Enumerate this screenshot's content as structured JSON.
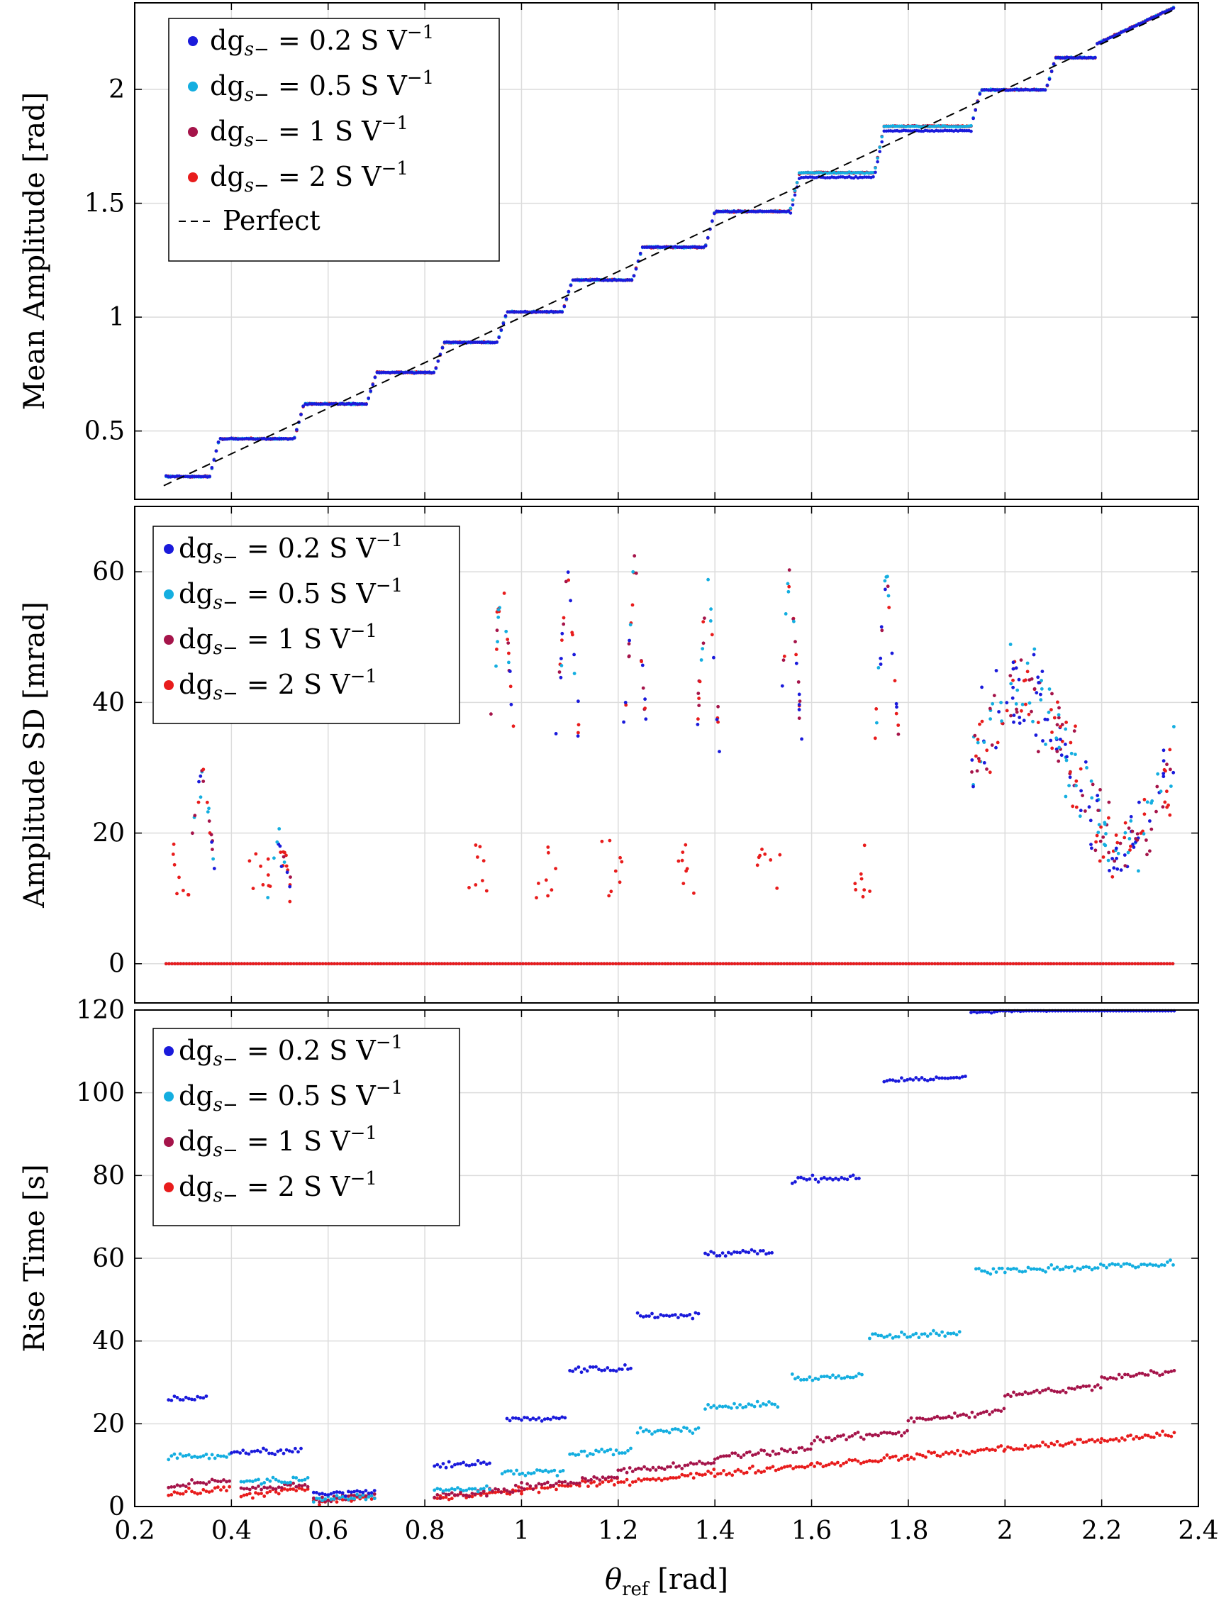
{
  "colors": {
    "s0": "#1a1adb",
    "s1": "#14aee0",
    "s2": "#a5144a",
    "s3": "#e81c1c",
    "perfect": "#000000",
    "grid": "#dcdcdc"
  },
  "legend": {
    "prefix": "dg",
    "sub": "s−",
    "unit": "S V",
    "exp": "−1",
    "perfect_label": "Perfect"
  },
  "chart_data": [
    {
      "type": "scatter",
      "ylabel": "Mean Amplitude [rad]",
      "xlim": [
        0.2,
        2.4
      ],
      "ylim": [
        0.2,
        2.38
      ],
      "yticks": [
        "0.5",
        "1",
        "1.5",
        "2"
      ],
      "grid": true,
      "legend_position": "top-left",
      "series": [
        {
          "name": "0.2",
          "step_levels": [
            0.3,
            0.466,
            0.619,
            0.757,
            0.889,
            1.023,
            1.163,
            1.307,
            1.464,
            1.634,
            1.838,
            1.998,
            2.139
          ],
          "step_edges": [
            0.355,
            0.53,
            0.68,
            0.82,
            0.95,
            1.085,
            1.23,
            1.38,
            1.555,
            1.73,
            1.93,
            2.085,
            2.19
          ]
        },
        {
          "name": "0.5"
        },
        {
          "name": "1"
        },
        {
          "name": "2"
        },
        {
          "name": "Perfect",
          "line": [
            [
              0.26,
              0.26
            ],
            [
              2.35,
              2.35
            ]
          ]
        }
      ]
    },
    {
      "type": "scatter",
      "ylabel": "Amplitude SD [mrad]",
      "xlim": [
        0.2,
        2.4
      ],
      "ylim": [
        -6,
        70
      ],
      "yticks": [
        "0",
        "20",
        "40",
        "60"
      ],
      "grid": true,
      "legend_position": "top-left",
      "series": [
        {
          "name": "0.2",
          "spike_centers": [
            0.34,
            0.5,
            0.96,
            1.095,
            1.235,
            1.385,
            1.555,
            1.755
          ],
          "spike_peaks": [
            30,
            19,
            62,
            62,
            62,
            61,
            61,
            62
          ]
        },
        {
          "name": "0.5"
        },
        {
          "name": "1"
        },
        {
          "name": "2",
          "noisy_band": {
            "x": [
              1.93,
              2.35
            ],
            "y": [
              18,
              56
            ]
          }
        }
      ]
    },
    {
      "type": "scatter",
      "ylabel": "Rise Time [s]",
      "xlabel": "θref [rad]",
      "xlim": [
        0.2,
        2.4
      ],
      "ylim": [
        0,
        120
      ],
      "xticks": [
        "0.2",
        "0.4",
        "0.6",
        "0.8",
        "1",
        "1.2",
        "1.4",
        "1.6",
        "1.8",
        "2",
        "2.2",
        "2.4"
      ],
      "yticks": [
        "0",
        "20",
        "40",
        "60",
        "80",
        "100",
        "120"
      ],
      "grid": true,
      "legend_position": "top-left",
      "series": [
        {
          "name": "0.2",
          "plateaus": [
            [
              0.27,
              0.35,
              26
            ],
            [
              0.4,
              0.55,
              13
            ],
            [
              0.57,
              0.7,
              3
            ],
            [
              0.82,
              0.94,
              10
            ],
            [
              0.97,
              1.09,
              21
            ],
            [
              1.1,
              1.23,
              33
            ],
            [
              1.24,
              1.37,
              46
            ],
            [
              1.38,
              1.52,
              61
            ],
            [
              1.56,
              1.7,
              79
            ],
            [
              1.75,
              1.92,
              103
            ],
            [
              1.93,
              2.35,
              119.5
            ]
          ]
        },
        {
          "name": "0.5",
          "plateaus": [
            [
              0.27,
              0.4,
              12
            ],
            [
              0.42,
              0.56,
              6
            ],
            [
              0.57,
              0.7,
              2
            ],
            [
              0.82,
              0.94,
              4
            ],
            [
              0.96,
              1.09,
              8
            ],
            [
              1.1,
              1.23,
              13
            ],
            [
              1.24,
              1.37,
              18
            ],
            [
              1.38,
              1.53,
              24
            ],
            [
              1.56,
              1.71,
              31
            ],
            [
              1.72,
              1.91,
              41
            ],
            [
              1.94,
              2.35,
              57
            ]
          ]
        },
        {
          "name": "1",
          "plateaus": [
            [
              0.27,
              0.4,
              5
            ],
            [
              0.42,
              0.56,
              4
            ],
            [
              0.57,
              0.7,
              1.5
            ],
            [
              0.82,
              1.0,
              2.5
            ],
            [
              1.0,
              1.2,
              5
            ],
            [
              1.2,
              1.4,
              8.5
            ],
            [
              1.4,
              1.6,
              12
            ],
            [
              1.6,
              1.8,
              16
            ],
            [
              1.8,
              2.0,
              21
            ],
            [
              2.0,
              2.2,
              27
            ],
            [
              2.2,
              2.35,
              31
            ]
          ]
        },
        {
          "name": "2",
          "plateaus": [
            [
              0.27,
              0.4,
              3
            ],
            [
              0.42,
              0.56,
              2.8
            ],
            [
              0.57,
              0.7,
              1
            ],
            [
              0.82,
              1.0,
              2
            ],
            [
              1.0,
              1.2,
              4
            ],
            [
              1.2,
              1.4,
              6
            ],
            [
              1.4,
              1.6,
              8
            ],
            [
              1.6,
              1.8,
              10
            ],
            [
              1.8,
              2.0,
              12
            ],
            [
              2.0,
              2.2,
              14
            ],
            [
              2.2,
              2.35,
              16
            ]
          ]
        }
      ]
    }
  ]
}
